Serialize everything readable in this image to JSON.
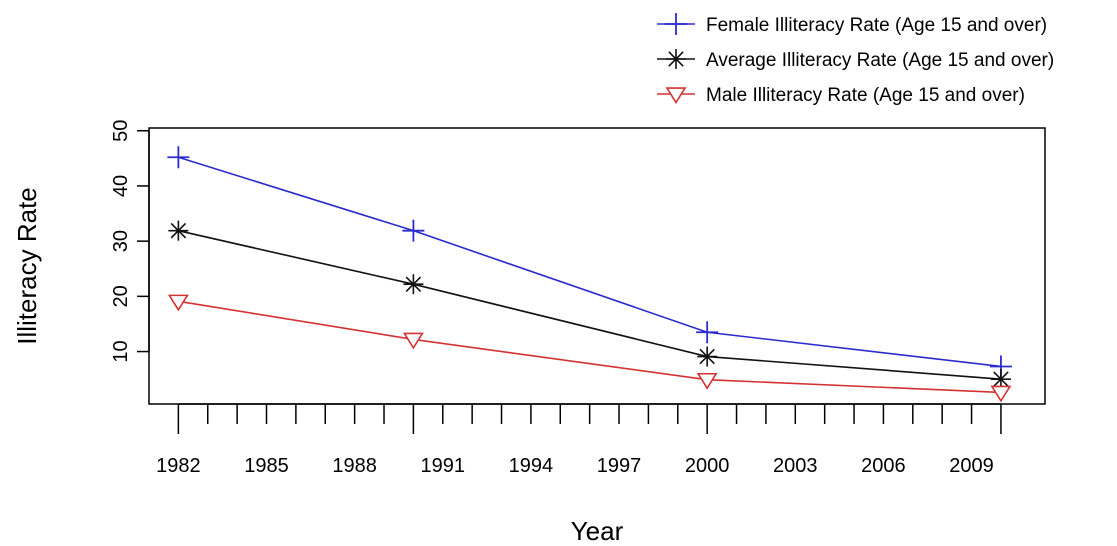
{
  "chart_data": {
    "type": "line",
    "xlabel": "Year",
    "ylabel": "Illiteracy Rate",
    "x": [
      1982,
      1990,
      2000,
      2010
    ],
    "xlim": [
      1981,
      2011.5
    ],
    "ylim": [
      0.5,
      50.5
    ],
    "x_tick_labels": [
      "1982",
      "1985",
      "1988",
      "1991",
      "1994",
      "1997",
      "2000",
      "2003",
      "2006",
      "2009"
    ],
    "x_tick_values": [
      1982,
      1985,
      1988,
      1991,
      1994,
      1997,
      2000,
      2003,
      2006,
      2009
    ],
    "x_minor_tick_start": 1982,
    "x_minor_tick_end": 2010,
    "y_tick_values": [
      10,
      20,
      30,
      40,
      50
    ],
    "y_tick_labels": [
      "10",
      "20",
      "30",
      "40",
      "50"
    ],
    "grid": false,
    "legend_position": "top-right",
    "series": [
      {
        "name": "Female Illiteracy Rate (Age 15 and over)",
        "values": [
          45.2,
          31.9,
          13.5,
          7.3
        ],
        "color": "#2b2bcf",
        "marker": "plus"
      },
      {
        "name": "Average Illiteracy Rate (Age 15 and over)",
        "values": [
          31.9,
          22.2,
          9.1,
          5.0
        ],
        "color": "#111111",
        "marker": "asterisk"
      },
      {
        "name": "Male Illiteracy Rate (Age 15 and over)",
        "values": [
          19.1,
          12.2,
          4.9,
          2.6
        ],
        "color": "#d43232",
        "marker": "triangle-down"
      }
    ]
  }
}
